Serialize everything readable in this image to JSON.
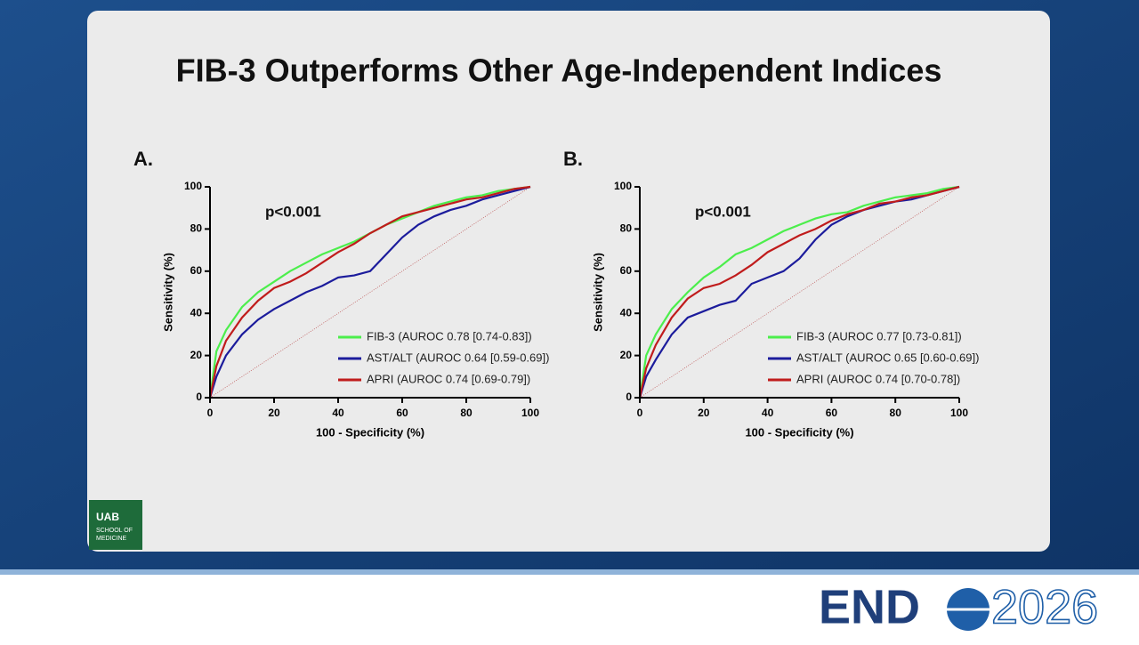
{
  "slide": {
    "title": "FIB-3 Outperforms Other Age-Independent Indices",
    "logo": [
      "UAB",
      "SCHOOL OF",
      "MEDICINE"
    ],
    "footer": {
      "brand": "END",
      "year": "2026"
    }
  },
  "chart_data": [
    {
      "type": "line",
      "title": "A.",
      "annotation": "p<0.001",
      "xlabel": "100 - Specificity (%)",
      "ylabel": "Sensitivity (%)",
      "x": [
        0,
        2,
        5,
        10,
        15,
        20,
        25,
        30,
        35,
        40,
        45,
        50,
        55,
        60,
        65,
        70,
        75,
        80,
        85,
        90,
        95,
        100
      ],
      "series": [
        {
          "name": "FIB-3 (AUROC 0.78 [0.74-0.83])",
          "color": "#4cee4c",
          "values": [
            0,
            22,
            32,
            43,
            50,
            55,
            60,
            64,
            68,
            71,
            74,
            78,
            82,
            85,
            88,
            91,
            93,
            95,
            96,
            98,
            99,
            100
          ]
        },
        {
          "name": "AST/ALT (AUROC 0.64 [0.59-0.69])",
          "color": "#1c1c9c",
          "values": [
            0,
            10,
            20,
            30,
            37,
            42,
            46,
            50,
            53,
            57,
            58,
            60,
            68,
            76,
            82,
            86,
            89,
            91,
            94,
            96,
            98,
            100
          ]
        },
        {
          "name": "APRI (AUROC 0.74 [0.69-0.79])",
          "color": "#c01c1c",
          "values": [
            0,
            15,
            27,
            38,
            46,
            52,
            55,
            59,
            64,
            69,
            73,
            78,
            82,
            86,
            88,
            90,
            92,
            94,
            95,
            97,
            99,
            100
          ]
        }
      ],
      "xlim": [
        0,
        100
      ],
      "ylim": [
        0,
        100
      ],
      "xticks": [
        0,
        20,
        40,
        60,
        80,
        100
      ],
      "yticks": [
        0,
        20,
        40,
        60,
        80,
        100
      ]
    },
    {
      "type": "line",
      "title": "B.",
      "annotation": "p<0.001",
      "xlabel": "100 - Specificity (%)",
      "ylabel": "Sensitivity (%)",
      "x": [
        0,
        2,
        5,
        10,
        15,
        20,
        25,
        30,
        35,
        40,
        45,
        50,
        55,
        60,
        65,
        70,
        75,
        80,
        85,
        90,
        95,
        100
      ],
      "series": [
        {
          "name": "FIB-3 (AUROC 0.77 [0.73-0.81])",
          "color": "#4cee4c",
          "values": [
            0,
            20,
            30,
            42,
            50,
            57,
            62,
            68,
            71,
            75,
            79,
            82,
            85,
            87,
            88,
            91,
            93,
            95,
            96,
            97,
            99,
            100
          ]
        },
        {
          "name": "AST/ALT (AUROC 0.65 [0.60-0.69])",
          "color": "#1c1c9c",
          "values": [
            0,
            10,
            18,
            30,
            38,
            41,
            44,
            46,
            54,
            57,
            60,
            66,
            75,
            82,
            86,
            89,
            91,
            93,
            94,
            96,
            98,
            100
          ]
        },
        {
          "name": "APRI (AUROC 0.74 [0.70-0.78])",
          "color": "#c01c1c",
          "values": [
            0,
            14,
            25,
            38,
            47,
            52,
            54,
            58,
            63,
            69,
            73,
            77,
            80,
            84,
            87,
            89,
            92,
            93,
            95,
            96,
            98,
            100
          ]
        }
      ],
      "xlim": [
        0,
        100
      ],
      "ylim": [
        0,
        100
      ],
      "xticks": [
        0,
        20,
        40,
        60,
        80,
        100
      ],
      "yticks": [
        0,
        20,
        40,
        60,
        80,
        100
      ]
    }
  ]
}
